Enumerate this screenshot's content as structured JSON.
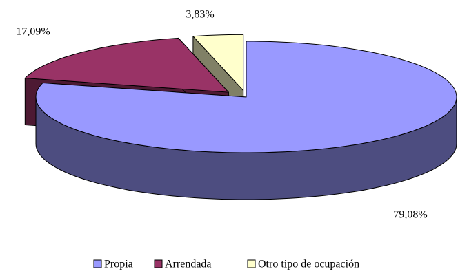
{
  "chart_data": {
    "type": "pie",
    "categories": [
      "Propia",
      "Arrendada",
      "Otro tipo de ocupación"
    ],
    "values": [
      79.08,
      17.09,
      3.83
    ],
    "value_labels": [
      "79,08%",
      "17,09%",
      "3,83%"
    ],
    "colors": [
      "#9999ff",
      "#993366",
      "#ffffcc"
    ],
    "side_colors": [
      "#4d4d80",
      "#4d1a33",
      "#808066"
    ]
  }
}
